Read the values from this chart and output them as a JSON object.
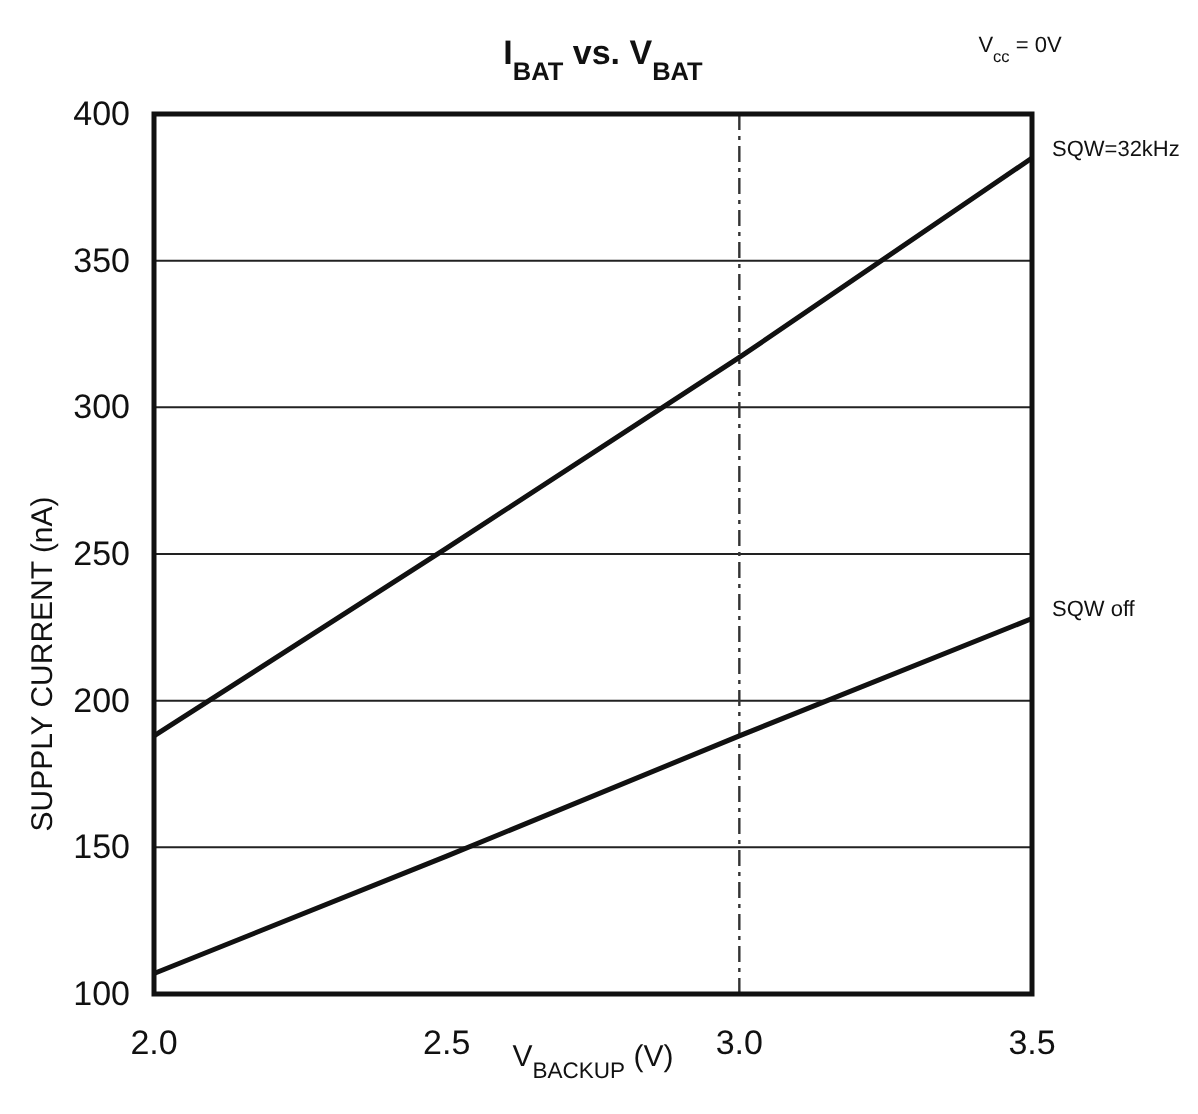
{
  "chart_data": {
    "type": "line",
    "title": "I$_{BAT}$ vs. V$_{BAT}$",
    "xlabel": "V$_{BACKUP}$ (V)",
    "ylabel": "SUPPLY CURRENT (nA)",
    "annotations": [
      "V$_{cc}$ = 0V"
    ],
    "x": [
      2.0,
      2.5,
      3.0,
      3.5
    ],
    "series": [
      {
        "name": "SQW=32kHz",
        "color": "#111111",
        "values": [
          188,
          252,
          317,
          385
        ]
      },
      {
        "name": "SQW off",
        "color": "#111111",
        "values": [
          107,
          147,
          188,
          228
        ]
      }
    ],
    "xlim": [
      2.0,
      3.5
    ],
    "xticks": [
      {
        "value": 2.0,
        "label": "2.0"
      },
      2.5,
      {
        "value": 3.0,
        "label": "3.0"
      },
      3.5
    ],
    "ylim": [
      100,
      400
    ],
    "yticks": [
      100,
      150,
      200,
      250,
      300,
      350,
      400
    ],
    "grid": "y",
    "legend": false,
    "marker": "none",
    "line_style": "solid",
    "ref_lines": [
      {
        "axis": "x",
        "value": 3.0,
        "line_style": "dashed",
        "color": "#333333"
      }
    ]
  }
}
